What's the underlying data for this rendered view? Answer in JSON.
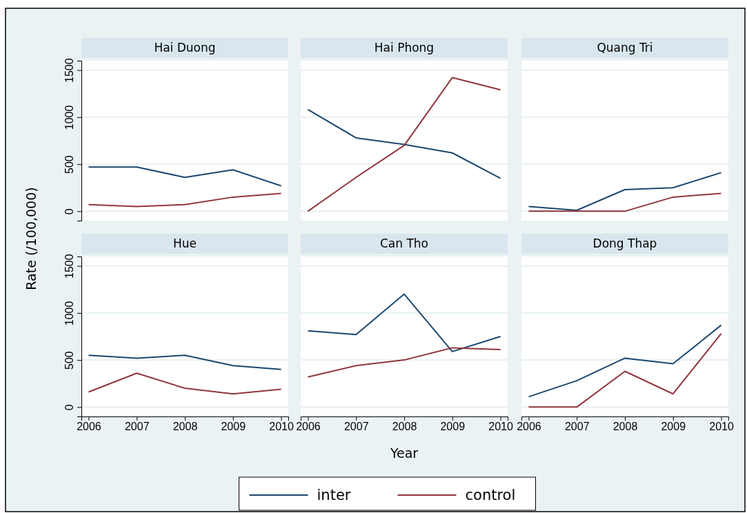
{
  "chart_data": [
    {
      "type": "line",
      "title": "Hai Duong",
      "ylabel": "Rate (/100,000)",
      "x": [
        2006,
        2007,
        2008,
        2009,
        2010
      ],
      "xlim": [
        2005.85,
        2010.15
      ],
      "xticks": [
        2006,
        2007,
        2008,
        2009,
        2010
      ],
      "ylim": [
        -100,
        1600
      ],
      "yticks": [
        0,
        500,
        1000,
        1500
      ],
      "grid": "y",
      "tick_labels": "y",
      "legend": "bottom",
      "series": [
        {
          "name": "inter",
          "color": "#1a476f",
          "values": [
            470,
            470,
            360,
            440,
            270
          ]
        },
        {
          "name": "control",
          "color": "#90353b",
          "values": [
            70,
            50,
            70,
            150,
            190
          ]
        }
      ]
    },
    {
      "type": "line",
      "title": "Hai Phong",
      "x": [
        2006,
        2007,
        2008,
        2009,
        2010
      ],
      "xlim": [
        2005.85,
        2010.15
      ],
      "xticks": [
        2006,
        2007,
        2008,
        2009,
        2010
      ],
      "ylim": [
        -100,
        1600
      ],
      "yticks": [
        0,
        500,
        1000,
        1500
      ],
      "grid": "y",
      "tick_labels": false,
      "series": [
        {
          "color": "#1a476f",
          "values": [
            1080,
            780,
            710,
            620,
            350
          ]
        },
        {
          "color": "#90353b",
          "values": [
            0,
            360,
            700,
            1420,
            1290
          ]
        }
      ]
    },
    {
      "type": "line",
      "title": "Quang Tri",
      "x": [
        2006,
        2007,
        2008,
        2009,
        2010
      ],
      "xlim": [
        2005.85,
        2010.15
      ],
      "xticks": [
        2006,
        2007,
        2008,
        2009,
        2010
      ],
      "ylim": [
        -100,
        1600
      ],
      "yticks": [
        0,
        500,
        1000,
        1500
      ],
      "grid": "y",
      "tick_labels": false,
      "series": [
        {
          "color": "#1a476f",
          "values": [
            50,
            10,
            230,
            250,
            410
          ]
        },
        {
          "color": "#90353b",
          "values": [
            0,
            0,
            0,
            150,
            190
          ]
        }
      ]
    },
    {
      "type": "line",
      "title": "Hue",
      "x": [
        2006,
        2007,
        2008,
        2009,
        2010
      ],
      "xlim": [
        2005.85,
        2010.15
      ],
      "xticks": [
        2006,
        2007,
        2008,
        2009,
        2010
      ],
      "ylim": [
        -100,
        1600
      ],
      "yticks": [
        0,
        500,
        1000,
        1500
      ],
      "grid": "y",
      "series": [
        {
          "color": "#1a476f",
          "values": [
            550,
            520,
            550,
            440,
            400
          ]
        },
        {
          "color": "#90353b",
          "values": [
            160,
            360,
            200,
            140,
            190
          ]
        }
      ]
    },
    {
      "type": "line",
      "title": "Can Tho",
      "xlabel": "Year",
      "x": [
        2006,
        2007,
        2008,
        2009,
        2010
      ],
      "xlim": [
        2005.85,
        2010.15
      ],
      "xticks": [
        2006,
        2007,
        2008,
        2009,
        2010
      ],
      "ylim": [
        -100,
        1600
      ],
      "yticks": [
        0,
        500,
        1000,
        1500
      ],
      "grid": "y",
      "tick_labels": "x",
      "series": [
        {
          "color": "#1a476f",
          "values": [
            810,
            770,
            1200,
            590,
            750
          ]
        },
        {
          "color": "#90353b",
          "values": [
            320,
            440,
            500,
            630,
            610
          ]
        }
      ]
    },
    {
      "type": "line",
      "title": "Dong Thap",
      "x": [
        2006,
        2007,
        2008,
        2009,
        2010
      ],
      "xlim": [
        2005.85,
        2010.15
      ],
      "xticks": [
        2006,
        2007,
        2008,
        2009,
        2010
      ],
      "ylim": [
        -100,
        1600
      ],
      "yticks": [
        0,
        500,
        1000,
        1500
      ],
      "grid": "y",
      "tick_labels": "x",
      "series": [
        {
          "color": "#1a476f",
          "values": [
            110,
            280,
            520,
            460,
            870
          ]
        },
        {
          "color": "#90353b",
          "values": [
            0,
            0,
            380,
            140,
            780
          ]
        }
      ]
    }
  ]
}
